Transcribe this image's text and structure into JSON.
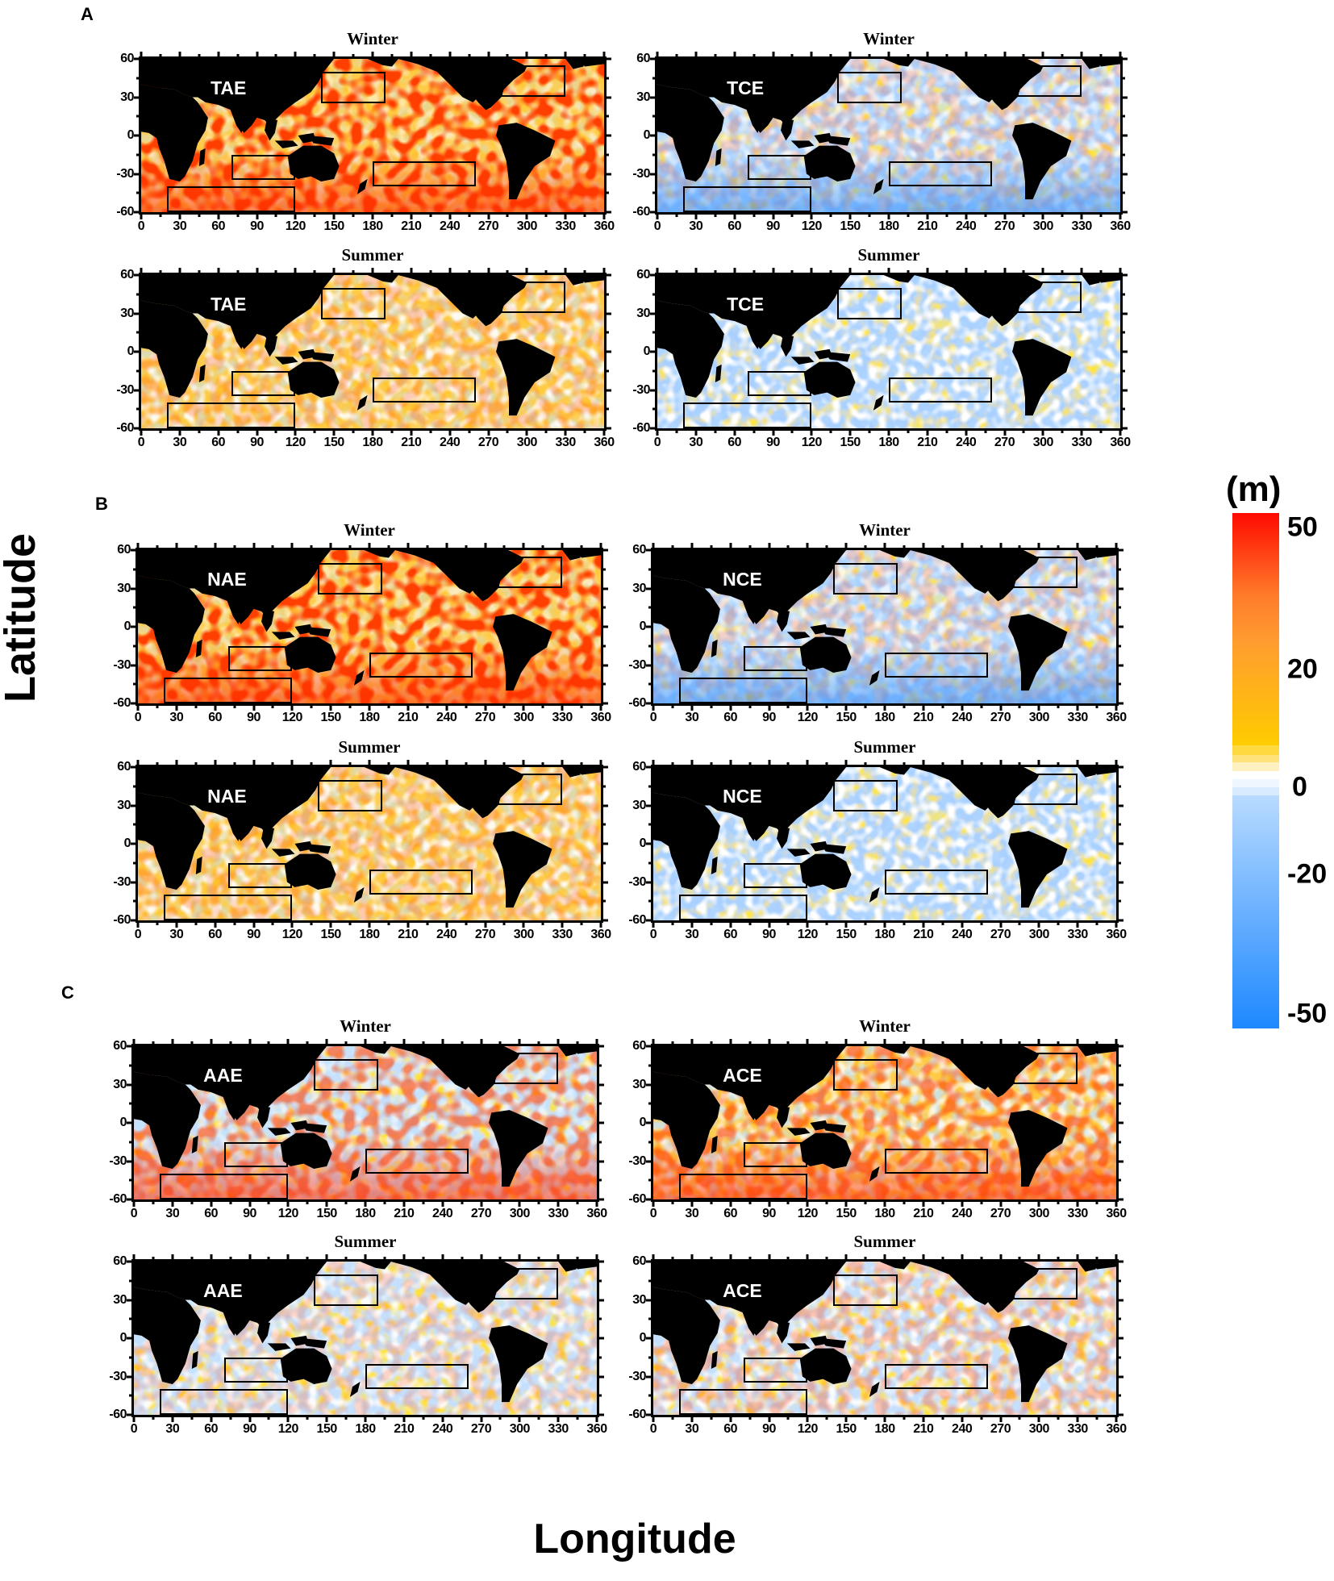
{
  "figure": {
    "axis_titles": {
      "x": "Longitude",
      "y": "Latitude"
    },
    "colorbar": {
      "unit": "(m)",
      "ticks": [
        {
          "label": "50",
          "value": 50
        },
        {
          "label": "20",
          "value": 20
        },
        {
          "label": "0",
          "value": 0
        },
        {
          "label": "-20",
          "value": -20
        },
        {
          "label": "-50",
          "value": -50
        }
      ],
      "colors": {
        "max": "#ff0000",
        "high": "#ff9a30",
        "mid_warm": "#ffcc00",
        "zero": "#ffffff",
        "mid_cool": "#9ccbff",
        "min": "#1e88ff"
      }
    },
    "sections": [
      {
        "label": "A",
        "panels": [
          {
            "season": "Winter",
            "tag": "TAE",
            "tone": "warm-strong"
          },
          {
            "season": "Winter",
            "tag": "TCE",
            "tone": "cool"
          },
          {
            "season": "Summer",
            "tag": "TAE",
            "tone": "warm-weak"
          },
          {
            "season": "Summer",
            "tag": "TCE",
            "tone": "cool-weak"
          }
        ]
      },
      {
        "label": "B",
        "panels": [
          {
            "season": "Winter",
            "tag": "NAE",
            "tone": "warm-strong"
          },
          {
            "season": "Winter",
            "tag": "NCE",
            "tone": "cool"
          },
          {
            "season": "Summer",
            "tag": "NAE",
            "tone": "warm-weak"
          },
          {
            "season": "Summer",
            "tag": "NCE",
            "tone": "cool-weak"
          }
        ]
      },
      {
        "label": "C",
        "panels": [
          {
            "season": "Winter",
            "tag": "AAE",
            "tone": "mixed-cool"
          },
          {
            "season": "Winter",
            "tag": "ACE",
            "tone": "mixed-warm"
          },
          {
            "season": "Summer",
            "tag": "AAE",
            "tone": "mixed-cool-weak"
          },
          {
            "season": "Summer",
            "tag": "ACE",
            "tone": "mixed-weak"
          }
        ]
      }
    ],
    "x_ticks": [
      "0",
      "30",
      "60",
      "90",
      "120",
      "150",
      "180",
      "210",
      "240",
      "270",
      "300",
      "330",
      "360"
    ],
    "y_ticks": [
      "60",
      "30",
      "0",
      "-30",
      "-60"
    ]
  },
  "chart_data": {
    "type": "heatmap",
    "title": "",
    "xlabel": "Longitude",
    "ylabel": "Latitude",
    "xlim": [
      0,
      360
    ],
    "ylim": [
      -60,
      60
    ],
    "x_ticks": [
      0,
      30,
      60,
      90,
      120,
      150,
      180,
      210,
      240,
      270,
      300,
      330,
      360
    ],
    "y_ticks": [
      60,
      30,
      0,
      -30,
      -60
    ],
    "colorbar": {
      "unit": "m",
      "range": [
        -50,
        50
      ],
      "ticks": [
        50,
        20,
        0,
        -20,
        -50
      ]
    },
    "panels": [
      {
        "section": "A",
        "season": "Winter",
        "label": "TAE"
      },
      {
        "section": "A",
        "season": "Winter",
        "label": "TCE"
      },
      {
        "section": "A",
        "season": "Summer",
        "label": "TAE"
      },
      {
        "section": "A",
        "season": "Summer",
        "label": "TCE"
      },
      {
        "section": "B",
        "season": "Winter",
        "label": "NAE"
      },
      {
        "section": "B",
        "season": "Winter",
        "label": "NCE"
      },
      {
        "section": "B",
        "season": "Summer",
        "label": "NAE"
      },
      {
        "section": "B",
        "season": "Summer",
        "label": "NCE"
      },
      {
        "section": "C",
        "season": "Winter",
        "label": "AAE"
      },
      {
        "section": "C",
        "season": "Winter",
        "label": "ACE"
      },
      {
        "section": "C",
        "season": "Summer",
        "label": "AAE"
      },
      {
        "section": "C",
        "season": "Summer",
        "label": "ACE"
      }
    ],
    "highlight_boxes": [
      {
        "lon": [
          20,
          120
        ],
        "lat": [
          -60,
          -40
        ]
      },
      {
        "lon": [
          70,
          120
        ],
        "lat": [
          -35,
          -15
        ]
      },
      {
        "lon": [
          140,
          190
        ],
        "lat": [
          25,
          50
        ]
      },
      {
        "lon": [
          180,
          260
        ],
        "lat": [
          -40,
          -20
        ]
      },
      {
        "lon": [
          280,
          330
        ],
        "lat": [
          30,
          55
        ]
      }
    ],
    "legend": {
      "position": "right",
      "type": "colorbar"
    },
    "grid": false
  }
}
